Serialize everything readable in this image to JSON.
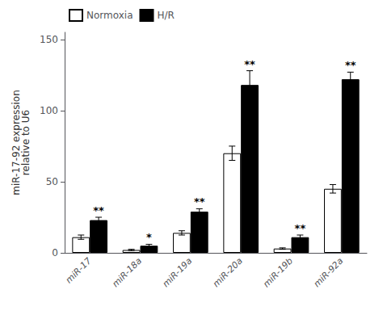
{
  "chart_data": {
    "type": "bar",
    "ylabel": "miR-17-92 expression\nrelative to U6",
    "categories": [
      "miR-17",
      "miR-18a",
      "miR-19a",
      "miR-20a",
      "miR-19b",
      "miR-92a"
    ],
    "series": [
      {
        "name": "Normoxia",
        "color": "#ffffff",
        "values": [
          11,
          2,
          14,
          70,
          3,
          45
        ],
        "errors": [
          1.5,
          0.5,
          1.5,
          5,
          0.5,
          3
        ]
      },
      {
        "name": "H/R",
        "color": "#000000",
        "values": [
          23,
          5,
          29,
          118,
          11,
          122
        ],
        "errors": [
          2,
          1,
          2,
          10,
          1.5,
          5
        ],
        "annotations": [
          "**",
          "*",
          "**",
          "**",
          "**",
          "**"
        ]
      }
    ],
    "ylim": [
      0,
      155
    ],
    "yticks": [
      0,
      50,
      100,
      150
    ],
    "grid": false,
    "legend": "upper left"
  }
}
